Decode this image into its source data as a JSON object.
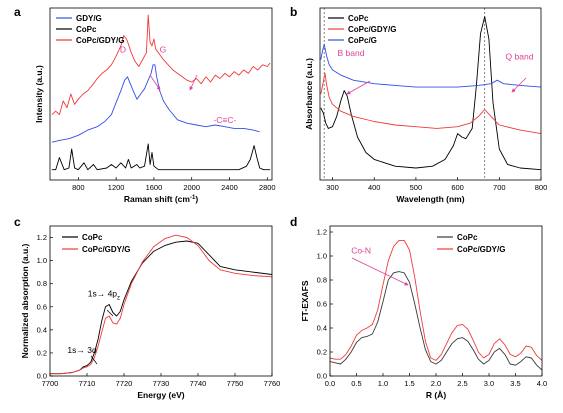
{
  "chart_data": [
    {
      "panel": "a",
      "type": "line",
      "xlabel": "Raman shift (cm",
      "xlabel_sup": "-1",
      "xlabel_end": ")",
      "ylabel": "Intensity (a.u.)",
      "xlim": [
        500,
        2850
      ],
      "ylim": [
        0,
        100
      ],
      "xticks": [
        800,
        1200,
        1600,
        2000,
        2400,
        2800
      ],
      "legend_position": "top-left",
      "annotations": [
        {
          "text": "D",
          "x": 1240,
          "y": 74,
          "color": "#e0409a"
        },
        {
          "text": "G",
          "x": 1660,
          "y": 74,
          "color": "#e0409a"
        },
        {
          "text": "-C≡C-",
          "x": 2230,
          "y": 33,
          "color": "#e0409a"
        }
      ],
      "series": [
        {
          "name": "GDY/G",
          "color": "#3050e8",
          "x": [
            520,
            600,
            700,
            800,
            900,
            1000,
            1080,
            1150,
            1200,
            1250,
            1290,
            1320,
            1350,
            1380,
            1420,
            1460,
            1500,
            1540,
            1570,
            1590,
            1610,
            1630,
            1660,
            1700,
            1760,
            1850,
            1950,
            2050,
            2150,
            2250,
            2350,
            2450,
            2550,
            2650,
            2720
          ],
          "y": [
            22,
            23,
            24,
            26,
            29,
            31,
            34,
            38,
            45,
            52,
            58,
            60,
            56,
            52,
            47,
            50,
            53,
            58,
            62,
            67,
            67,
            60,
            52,
            46,
            41,
            35,
            33,
            32,
            31,
            32,
            31,
            30,
            30,
            29,
            28
          ]
        },
        {
          "name": "CoPc",
          "color": "#000000",
          "x": [
            520,
            560,
            600,
            650,
            700,
            730,
            760,
            800,
            860,
            900,
            960,
            1000,
            1100,
            1150,
            1200,
            1250,
            1300,
            1330,
            1360,
            1420,
            1450,
            1500,
            1540,
            1560,
            1580,
            1600,
            1650,
            1700,
            1800,
            1900,
            2000,
            2100,
            2200,
            2300,
            2400,
            2500,
            2580,
            2620,
            2660,
            2690,
            2720,
            2760,
            2800,
            2830
          ],
          "y": [
            6,
            6,
            13,
            6,
            7,
            18,
            7,
            6,
            10,
            6,
            9,
            6,
            7,
            9,
            7,
            10,
            7,
            12,
            7,
            9,
            7,
            8,
            21,
            9,
            16,
            8,
            6,
            6,
            6,
            6,
            6,
            6,
            6,
            6,
            6,
            6,
            8,
            12,
            20,
            13,
            7,
            6,
            6,
            6
          ]
        },
        {
          "name": "CoPc/GDY/G",
          "color": "#f03a3a",
          "x": [
            520,
            560,
            600,
            640,
            680,
            720,
            760,
            800,
            850,
            900,
            960,
            1000,
            1050,
            1100,
            1150,
            1200,
            1250,
            1280,
            1310,
            1330,
            1360,
            1400,
            1440,
            1480,
            1520,
            1540,
            1560,
            1580,
            1600,
            1620,
            1660,
            1700,
            1750,
            1800,
            1850,
            1900,
            1950,
            2000,
            2050,
            2100,
            2150,
            2200,
            2250,
            2300,
            2350,
            2400,
            2450,
            2500,
            2550,
            2600,
            2650,
            2700,
            2750,
            2800,
            2830
          ],
          "y": [
            38,
            40,
            38,
            46,
            42,
            50,
            44,
            47,
            50,
            52,
            56,
            59,
            62,
            64,
            67,
            72,
            78,
            84,
            82,
            79,
            74,
            69,
            66,
            70,
            74,
            96,
            80,
            78,
            82,
            76,
            73,
            70,
            67,
            64,
            62,
            60,
            58,
            57,
            59,
            56,
            60,
            57,
            61,
            59,
            62,
            60,
            63,
            61,
            64,
            62,
            66,
            64,
            67,
            66,
            68
          ]
        }
      ]
    },
    {
      "panel": "b",
      "type": "line",
      "xlabel": "Wavelength (nm)",
      "ylabel": "Absorbance (a.u.)",
      "xlim": [
        270,
        800
      ],
      "ylim": [
        0,
        100
      ],
      "xticks": [
        300,
        400,
        500,
        600,
        700,
        800
      ],
      "legend_position": "top-left",
      "vlines": [
        280,
        665
      ],
      "annotations": [
        {
          "text": "B band",
          "x": 312,
          "y": 72,
          "color": "#e0409a"
        },
        {
          "text": "Q band",
          "x": 715,
          "y": 70,
          "color": "#e0409a"
        }
      ],
      "series": [
        {
          "name": "CoPc",
          "color": "#000000",
          "x": [
            272,
            278,
            284,
            290,
            300,
            310,
            320,
            328,
            335,
            345,
            360,
            380,
            400,
            450,
            500,
            540,
            570,
            590,
            600,
            610,
            620,
            635,
            645,
            655,
            665,
            675,
            685,
            700,
            720,
            750,
            800
          ],
          "y": [
            42,
            39,
            33,
            30,
            31,
            37,
            46,
            52,
            49,
            38,
            25,
            16,
            12,
            8,
            7,
            8,
            12,
            20,
            27,
            25,
            24,
            30,
            55,
            85,
            95,
            82,
            45,
            18,
            9,
            7,
            6
          ]
        },
        {
          "name": "CoPc/GDY/G",
          "color": "#f03a3a",
          "x": [
            272,
            278,
            282,
            286,
            292,
            300,
            320,
            350,
            400,
            450,
            500,
            550,
            600,
            630,
            650,
            665,
            680,
            700,
            750,
            800
          ],
          "y": [
            50,
            57,
            62,
            55,
            48,
            44,
            40,
            37,
            34,
            32,
            31,
            30,
            31,
            33,
            37,
            41,
            37,
            32,
            29,
            27
          ]
        },
        {
          "name": "CoPc/G",
          "color": "#3050e8",
          "x": [
            272,
            276,
            280,
            286,
            292,
            300,
            320,
            350,
            400,
            450,
            500,
            550,
            600,
            650,
            680,
            695,
            710,
            750,
            800
          ],
          "y": [
            70,
            75,
            79,
            72,
            67,
            64,
            61,
            58,
            56,
            55,
            54,
            54,
            54,
            55,
            56,
            58,
            56,
            55,
            54
          ]
        }
      ]
    },
    {
      "panel": "c",
      "type": "line",
      "xlabel": "Energy (eV)",
      "ylabel": "Normalized absorption (a.u.)",
      "xlim": [
        7700,
        7760
      ],
      "ylim": [
        0,
        1.3
      ],
      "xticks": [
        7700,
        7710,
        7720,
        7730,
        7740,
        7750,
        7760
      ],
      "yticks": [
        0.0,
        0.2,
        0.4,
        0.6,
        0.8,
        1.0,
        1.2
      ],
      "ytick_labels": [
        "0.0",
        "0.2",
        "0.4",
        "0.6",
        "0.8",
        "1.0",
        "1.2"
      ],
      "legend_position": "top-left",
      "annotations": [
        {
          "text": "1s→ 4p",
          "sub": "z",
          "x": 7710.2,
          "y": 0.69,
          "color": "#000000"
        },
        {
          "text": "1s→ 3d",
          "x": 7704.7,
          "y": 0.2,
          "color": "#000000"
        }
      ],
      "series": [
        {
          "name": "CoPc",
          "color": "#000000",
          "x": [
            7700,
            7703,
            7706,
            7708,
            7709,
            7710,
            7711,
            7712,
            7713,
            7714,
            7715,
            7716,
            7717,
            7718,
            7719,
            7720,
            7722,
            7725,
            7728,
            7731,
            7734,
            7737,
            7740,
            7743,
            7746,
            7750,
            7755,
            7760
          ],
          "y": [
            0.02,
            0.02,
            0.03,
            0.05,
            0.08,
            0.09,
            0.12,
            0.2,
            0.32,
            0.48,
            0.6,
            0.62,
            0.55,
            0.52,
            0.56,
            0.66,
            0.82,
            0.98,
            1.08,
            1.13,
            1.16,
            1.17,
            1.15,
            1.05,
            0.95,
            0.92,
            0.9,
            0.88
          ]
        },
        {
          "name": "CoPc/GDY/G",
          "color": "#f03a3a",
          "x": [
            7700,
            7703,
            7706,
            7708,
            7709,
            7710,
            7711,
            7712,
            7713,
            7714,
            7715,
            7716,
            7717,
            7718,
            7719,
            7720,
            7722,
            7725,
            7728,
            7731,
            7734,
            7737,
            7740,
            7743,
            7746,
            7750,
            7755,
            7760
          ],
          "y": [
            0.02,
            0.02,
            0.03,
            0.05,
            0.07,
            0.08,
            0.1,
            0.16,
            0.26,
            0.38,
            0.5,
            0.52,
            0.46,
            0.45,
            0.5,
            0.62,
            0.8,
            0.99,
            1.12,
            1.19,
            1.22,
            1.2,
            1.13,
            1.0,
            0.92,
            0.89,
            0.87,
            0.86
          ]
        }
      ]
    },
    {
      "panel": "d",
      "type": "line",
      "xlabel": "R (Å)",
      "ylabel": "FT-EXAFS",
      "xlim": [
        0,
        4
      ],
      "ylim": [
        0,
        1.25
      ],
      "xticks": [
        0.0,
        0.5,
        1.0,
        1.5,
        2.0,
        2.5,
        3.0,
        3.5,
        4.0
      ],
      "xtick_labels": [
        "0.0",
        "0.5",
        "1.0",
        "1.5",
        "2.0",
        "2.5",
        "3.0",
        "3.5",
        "4.0"
      ],
      "yticks": [
        0.0,
        0.2,
        0.4,
        0.6,
        0.8,
        1.0,
        1.2
      ],
      "ytick_labels": [
        "0.0",
        "0.2",
        "0.4",
        "0.6",
        "0.8",
        "1.0",
        "1.2"
      ],
      "legend_position": "top-right",
      "annotations": [
        {
          "text": "Co-N",
          "x": 0.4,
          "y": 1.02,
          "color": "#e0409a"
        }
      ],
      "series": [
        {
          "name": "CoPc",
          "color": "#3a3a3a",
          "x": [
            0.0,
            0.1,
            0.2,
            0.3,
            0.4,
            0.5,
            0.6,
            0.7,
            0.8,
            0.9,
            1.0,
            1.1,
            1.2,
            1.3,
            1.4,
            1.5,
            1.6,
            1.7,
            1.8,
            1.9,
            2.0,
            2.1,
            2.2,
            2.3,
            2.4,
            2.5,
            2.6,
            2.7,
            2.8,
            2.9,
            3.0,
            3.1,
            3.2,
            3.3,
            3.4,
            3.5,
            3.6,
            3.7,
            3.8,
            3.9,
            4.0
          ],
          "y": [
            0.12,
            0.11,
            0.1,
            0.14,
            0.2,
            0.28,
            0.32,
            0.33,
            0.35,
            0.45,
            0.62,
            0.8,
            0.86,
            0.87,
            0.86,
            0.78,
            0.6,
            0.4,
            0.22,
            0.12,
            0.1,
            0.13,
            0.2,
            0.27,
            0.31,
            0.32,
            0.29,
            0.22,
            0.14,
            0.1,
            0.13,
            0.2,
            0.23,
            0.18,
            0.1,
            0.09,
            0.12,
            0.16,
            0.15,
            0.09,
            0.05
          ]
        },
        {
          "name": "CoPc/GDY/G",
          "color": "#f03a3a",
          "x": [
            0.0,
            0.1,
            0.2,
            0.3,
            0.4,
            0.5,
            0.6,
            0.7,
            0.8,
            0.9,
            1.0,
            1.1,
            1.2,
            1.3,
            1.4,
            1.5,
            1.6,
            1.7,
            1.8,
            1.9,
            2.0,
            2.1,
            2.2,
            2.3,
            2.4,
            2.5,
            2.6,
            2.7,
            2.8,
            2.9,
            3.0,
            3.1,
            3.2,
            3.3,
            3.4,
            3.5,
            3.6,
            3.7,
            3.8,
            3.9,
            4.0
          ],
          "y": [
            0.15,
            0.14,
            0.14,
            0.18,
            0.25,
            0.34,
            0.38,
            0.4,
            0.43,
            0.55,
            0.76,
            0.96,
            1.08,
            1.13,
            1.13,
            1.05,
            0.82,
            0.54,
            0.29,
            0.15,
            0.13,
            0.18,
            0.27,
            0.36,
            0.42,
            0.43,
            0.39,
            0.3,
            0.2,
            0.15,
            0.18,
            0.27,
            0.31,
            0.26,
            0.18,
            0.16,
            0.19,
            0.25,
            0.24,
            0.17,
            0.13
          ]
        }
      ]
    }
  ]
}
